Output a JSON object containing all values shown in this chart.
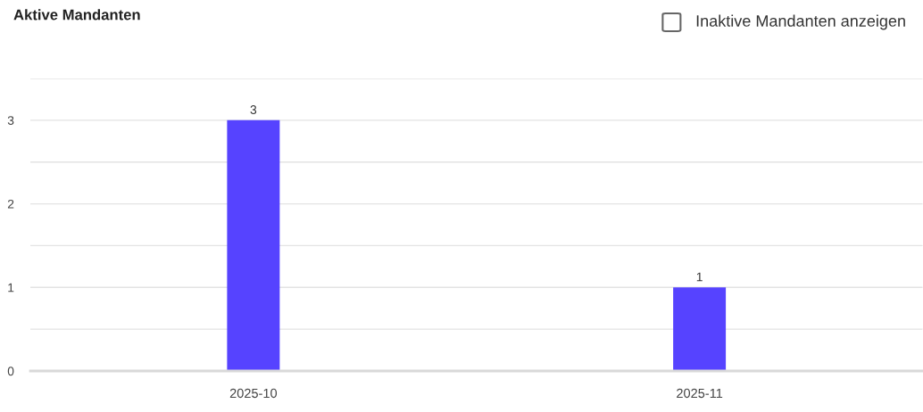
{
  "chart_data": {
    "type": "bar",
    "title": "Aktive Mandanten",
    "categories": [
      "2025-10",
      "2025-11"
    ],
    "values": [
      3,
      1
    ],
    "color": "#5643ff",
    "ylim": [
      0,
      3.5
    ],
    "yticks": [
      0,
      {
        "value": 0.5,
        "label": null
      },
      1,
      {
        "value": 1.5,
        "label": null
      },
      2,
      {
        "value": 2.5,
        "label": null
      },
      3,
      {
        "value": 3.5,
        "label": null
      }
    ],
    "grid": "y",
    "data_labels": true,
    "annotations": [
      "Inaktive Mandanten anzeigen"
    ]
  }
}
